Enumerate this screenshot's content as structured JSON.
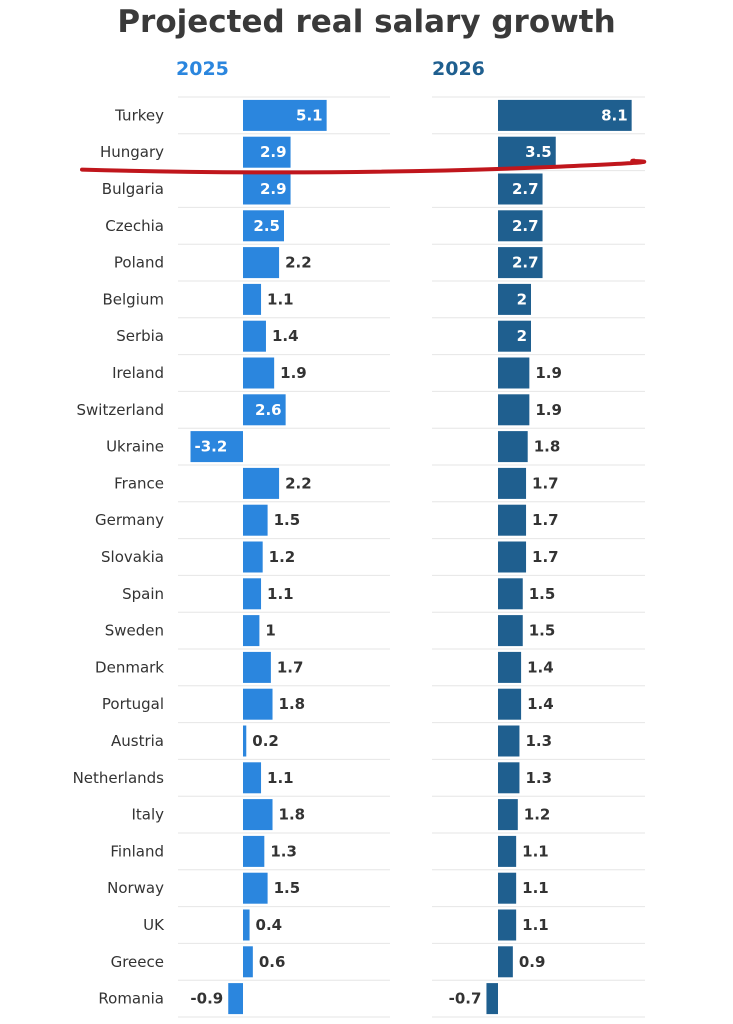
{
  "chart_data": {
    "type": "bar",
    "orientation": "horizontal",
    "title": "Projected real salary growth",
    "categories": [
      "Turkey",
      "Hungary",
      "Bulgaria",
      "Czechia",
      "Poland",
      "Belgium",
      "Serbia",
      "Ireland",
      "Switzerland",
      "Ukraine",
      "France",
      "Germany",
      "Slovakia",
      "Spain",
      "Sweden",
      "Denmark",
      "Portugal",
      "Austria",
      "Netherlands",
      "Italy",
      "Finland",
      "Norway",
      "UK",
      "Greece",
      "Romania"
    ],
    "series": [
      {
        "name": "2025",
        "color": "#2b86de",
        "values": [
          5.1,
          2.9,
          2.9,
          2.5,
          2.2,
          1.1,
          1.4,
          1.9,
          2.6,
          -3.2,
          2.2,
          1.5,
          1.2,
          1.1,
          1,
          1.7,
          1.8,
          0.2,
          1.1,
          1.8,
          1.3,
          1.5,
          0.4,
          0.6,
          -0.9
        ]
      },
      {
        "name": "2026",
        "color": "#1f5f8f",
        "values": [
          8.1,
          3.5,
          2.7,
          2.7,
          2.7,
          2,
          2,
          1.9,
          1.9,
          1.8,
          1.7,
          1.7,
          1.7,
          1.5,
          1.5,
          1.4,
          1.4,
          1.3,
          1.3,
          1.2,
          1.1,
          1.1,
          1.1,
          0.9,
          -0.7
        ]
      }
    ],
    "annotation": {
      "type": "red-hand-drawn-line",
      "between": [
        "Hungary",
        "Bulgaria"
      ],
      "color": "#c0161c"
    },
    "grid": true,
    "legend": "panel titles above each column"
  }
}
